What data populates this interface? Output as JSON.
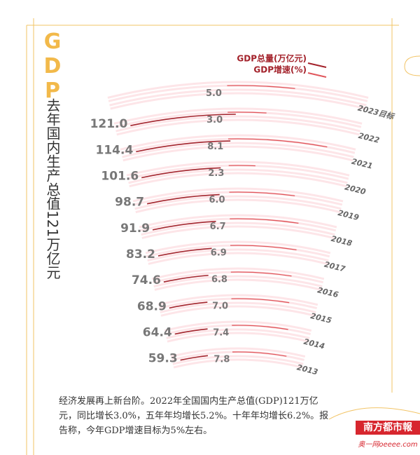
{
  "chart_data": {
    "type": "radial_arc",
    "title": "GDP",
    "subtitle": "去年国内生产总值121万亿元",
    "categories": [
      "2013",
      "2014",
      "2015",
      "2016",
      "2017",
      "2018",
      "2019",
      "2020",
      "2021",
      "2022",
      "2023目标"
    ],
    "series": [
      {
        "name": "GDP总量(万亿元)",
        "color": "#a3222b",
        "values": [
          59.3,
          64.4,
          68.9,
          74.6,
          83.2,
          91.9,
          98.7,
          101.6,
          114.4,
          121.0,
          null
        ],
        "value_labels": [
          "59.3",
          "64.4",
          "68.9",
          "74.6",
          "83.2",
          "91.9",
          "98.7",
          "101.6",
          "114.4",
          "121.0",
          null
        ]
      },
      {
        "name": "GDP增速(%)",
        "color": "#e0575c",
        "values": [
          7.8,
          7.4,
          7.0,
          6.8,
          6.9,
          6.7,
          6.0,
          2.3,
          8.1,
          3.0,
          5.0
        ],
        "value_labels": [
          "7.8",
          "7.4",
          "7.0",
          "6.8",
          "6.9",
          "6.7",
          "6.0",
          "2.3",
          "8.1",
          "3.0",
          "5.0"
        ]
      }
    ],
    "annotation": "经济发展再上新台阶。2022年全国国内生产总值(GDP)121万亿元，同比增长3.0%，五年年均增长5.2%。十年年均增长6.2%。报告称，今年GDP增速目标为5%左右。",
    "source": "南方都市報",
    "source_site": "奥一网oeeee.com"
  }
}
